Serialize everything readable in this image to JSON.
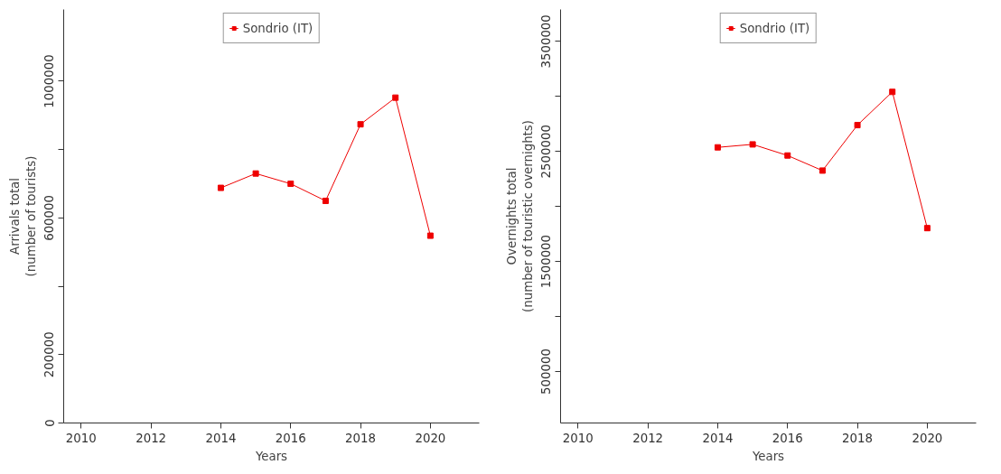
{
  "chart_data": [
    {
      "type": "line",
      "xlabel": "Years",
      "ylabel": "Arrivals total\n(number of tourists)",
      "x": [
        2014,
        2015,
        2016,
        2017,
        2018,
        2019,
        2020
      ],
      "series": [
        {
          "name": "Sondrio (IT)",
          "color": "#ee0000",
          "values": [
            688000,
            730000,
            700000,
            650000,
            874000,
            952000,
            548000
          ]
        }
      ],
      "xlim": [
        2009.5,
        2021.4
      ],
      "xticks": [
        2010,
        2012,
        2014,
        2016,
        2018,
        2020
      ],
      "ylim": [
        0,
        1210000
      ],
      "yticks": [
        0,
        200000,
        {
          "value": 400000,
          "label": null
        },
        600000,
        {
          "value": 800000,
          "label": null
        },
        1000000
      ],
      "grid": false,
      "legend": "top",
      "marker": "square",
      "line_style": "solid"
    },
    {
      "type": "line",
      "xlabel": "Years",
      "ylabel": "Overnights total\n(number of touristic overnights)",
      "x": [
        2014,
        2015,
        2016,
        2017,
        2018,
        2019,
        2020
      ],
      "series": [
        {
          "name": "Sondrio (IT)",
          "color": "#ee0000",
          "values": [
            2537000,
            2564000,
            2463000,
            2326000,
            2739000,
            3041000,
            1803000
          ]
        }
      ],
      "xlim": [
        2009.5,
        2021.4
      ],
      "xticks": [
        2010,
        2012,
        2014,
        2016,
        2018,
        2020
      ],
      "ylim": [
        32000,
        3790000
      ],
      "yticks": [
        500000,
        {
          "value": 1000000,
          "label": null
        },
        1500000,
        {
          "value": 2000000,
          "label": null
        },
        2500000,
        {
          "value": 3000000,
          "label": null
        },
        3500000
      ],
      "grid": false,
      "legend": "top",
      "marker": "square",
      "line_style": "solid"
    }
  ]
}
